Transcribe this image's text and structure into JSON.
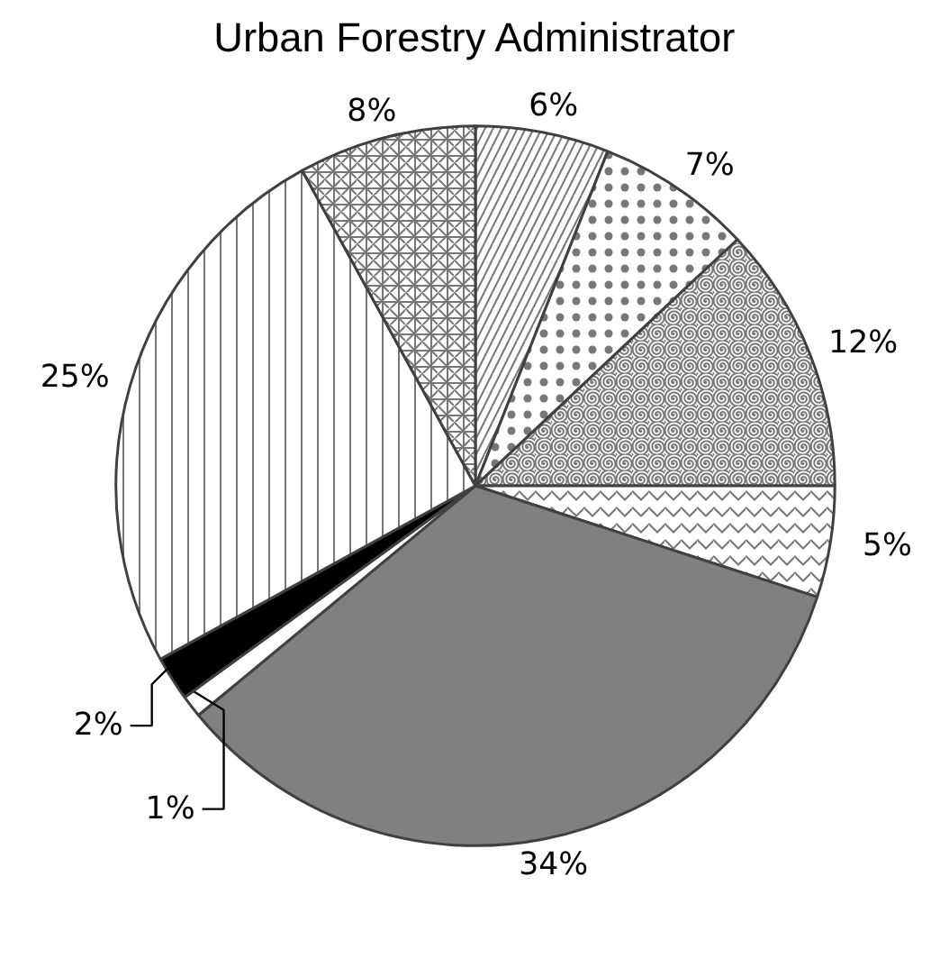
{
  "chart_data": {
    "type": "pie",
    "title": "Urban Forestry Administrator",
    "categories": [
      null,
      null,
      null,
      null,
      null,
      null,
      null,
      null,
      null
    ],
    "values": [
      6,
      7,
      12,
      5,
      34,
      1,
      2,
      25,
      8
    ],
    "value_labels": [
      "6%",
      "7%",
      "12%",
      "5%",
      "34%",
      "1%",
      "2%",
      "25%",
      "8%"
    ],
    "colors": [
      "#ffffff",
      "#ffffff",
      "#ffffff",
      "#ffffff",
      "#808080",
      "#ffffff",
      "#000000",
      "#ffffff",
      "#ffffff"
    ]
  }
}
